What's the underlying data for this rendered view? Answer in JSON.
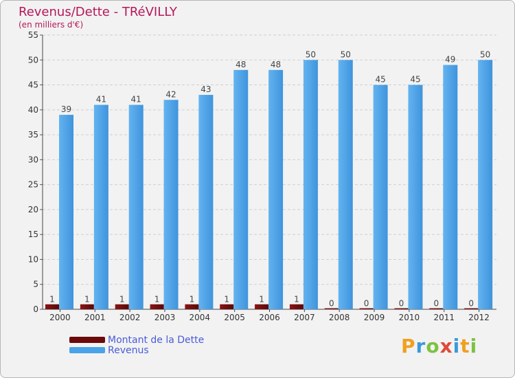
{
  "header": {
    "title": "Revenus/Dette - TRéVILLY",
    "subtitle": "(en milliers d'€)"
  },
  "chart_data": {
    "type": "bar",
    "title": "Revenus/Dette - TRéVILLY",
    "ylabel": "(en milliers d'€)",
    "xlabel": "",
    "ylim": [
      0,
      55
    ],
    "yticks": [
      0,
      5,
      10,
      15,
      20,
      25,
      30,
      35,
      40,
      45,
      50,
      55
    ],
    "grid": true,
    "categories": [
      "2000",
      "2001",
      "2002",
      "2003",
      "2004",
      "2005",
      "2006",
      "2007",
      "2008",
      "2009",
      "2010",
      "2011",
      "2012"
    ],
    "series": [
      {
        "name": "Montant de la Dette",
        "color": "#6b0a0a",
        "values": [
          1,
          1,
          1,
          1,
          1,
          1,
          1,
          1,
          0,
          0,
          0,
          0,
          0
        ]
      },
      {
        "name": "Revenus",
        "color": "#4aa3e8",
        "values": [
          39,
          41,
          41,
          42,
          43,
          48,
          48,
          50,
          50,
          45,
          45,
          49,
          50
        ]
      }
    ],
    "legend_position": "bottom-left"
  },
  "legend": {
    "items": [
      {
        "label": "Montant de la Dette",
        "color": "#6b0a0a"
      },
      {
        "label": "Revenus",
        "color": "#4aa3e8"
      }
    ]
  },
  "logo": {
    "letters": [
      "P",
      "r",
      "o",
      "x",
      "i",
      "t",
      "i"
    ],
    "colors": [
      "#f0a020",
      "#3a9ad9",
      "#7cc242",
      "#e0483a",
      "#3a9ad9",
      "#f0a020",
      "#7cc242"
    ]
  }
}
